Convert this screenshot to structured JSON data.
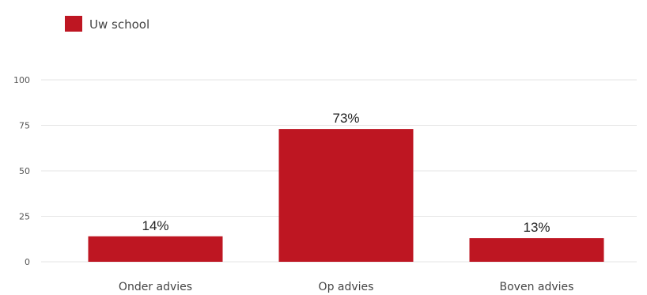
{
  "chart_data": {
    "type": "bar",
    "categories": [
      "Onder advies",
      "Op advies",
      "Boven advies"
    ],
    "series": [
      {
        "name": "Uw school",
        "values": [
          14,
          73,
          13
        ],
        "data_labels": [
          "14%",
          "73%",
          "13%"
        ]
      }
    ],
    "yticks": [
      0,
      25,
      50,
      75,
      100
    ],
    "ylim": [
      0,
      100
    ],
    "grid": true,
    "legend_position": "top-left",
    "colors": {
      "bar": "#be1622"
    }
  }
}
